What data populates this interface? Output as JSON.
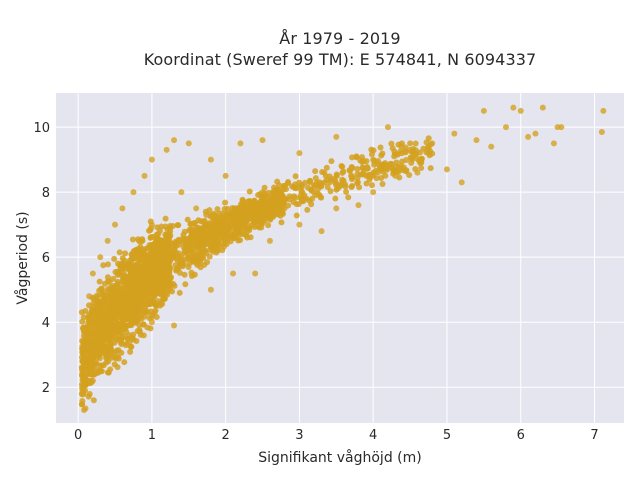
{
  "chart_data": {
    "type": "scatter",
    "title": "År 1979 - 2019",
    "subtitle": "Koordinat (Sweref 99 TM): E 574841, N 6094337",
    "xlabel": "Signifikant våghöjd (m)",
    "ylabel": "Vågperiod (s)",
    "xlim": [
      -0.3,
      7.4
    ],
    "ylim": [
      0.9,
      11.05
    ],
    "x_ticks": [
      0,
      1,
      2,
      3,
      4,
      5,
      6,
      7
    ],
    "y_ticks": [
      2,
      4,
      6,
      8,
      10
    ],
    "x_tick_labels": [
      "0",
      "1",
      "2",
      "3",
      "4",
      "5",
      "6",
      "7"
    ],
    "y_tick_labels": [
      "2",
      "4",
      "6",
      "8",
      "10"
    ],
    "grid": true,
    "legend": "none",
    "marker_color": "#D4A120",
    "background_color": "#E5E5F0",
    "series": [
      {
        "values": [
          {
            "x": 0.05,
            "y": 1.8
          },
          {
            "x": 0.08,
            "y": 1.3
          },
          {
            "x": 0.1,
            "y": 1.35
          },
          {
            "x": 0.1,
            "y": 2.5
          },
          {
            "x": 0.12,
            "y": 3.0
          },
          {
            "x": 0.15,
            "y": 3.5
          },
          {
            "x": 0.15,
            "y": 4.8
          },
          {
            "x": 0.2,
            "y": 2.2
          },
          {
            "x": 0.2,
            "y": 5.5
          },
          {
            "x": 0.25,
            "y": 3.8
          },
          {
            "x": 0.3,
            "y": 6.0
          },
          {
            "x": 0.3,
            "y": 2.5
          },
          {
            "x": 0.35,
            "y": 4.5
          },
          {
            "x": 0.4,
            "y": 6.5
          },
          {
            "x": 0.45,
            "y": 3.0
          },
          {
            "x": 0.5,
            "y": 7.0
          },
          {
            "x": 0.5,
            "y": 4.0
          },
          {
            "x": 0.6,
            "y": 7.5
          },
          {
            "x": 0.6,
            "y": 5.0
          },
          {
            "x": 0.7,
            "y": 3.4
          },
          {
            "x": 0.75,
            "y": 8.0
          },
          {
            "x": 0.8,
            "y": 6.0
          },
          {
            "x": 0.9,
            "y": 8.5
          },
          {
            "x": 1.0,
            "y": 4.0
          },
          {
            "x": 1.0,
            "y": 9.0
          },
          {
            "x": 1.0,
            "y": 7.0
          },
          {
            "x": 1.2,
            "y": 9.3
          },
          {
            "x": 1.2,
            "y": 5.0
          },
          {
            "x": 1.3,
            "y": 3.9
          },
          {
            "x": 1.3,
            "y": 9.6
          },
          {
            "x": 1.4,
            "y": 8.0
          },
          {
            "x": 1.5,
            "y": 6.0
          },
          {
            "x": 1.5,
            "y": 9.5
          },
          {
            "x": 1.6,
            "y": 7.5
          },
          {
            "x": 1.8,
            "y": 9.0
          },
          {
            "x": 1.8,
            "y": 5.0
          },
          {
            "x": 2.0,
            "y": 6.5
          },
          {
            "x": 2.0,
            "y": 8.5
          },
          {
            "x": 2.1,
            "y": 5.5
          },
          {
            "x": 2.2,
            "y": 9.5
          },
          {
            "x": 2.3,
            "y": 7.0
          },
          {
            "x": 2.4,
            "y": 5.5
          },
          {
            "x": 2.5,
            "y": 8.0
          },
          {
            "x": 2.5,
            "y": 9.6
          },
          {
            "x": 2.6,
            "y": 6.5
          },
          {
            "x": 2.8,
            "y": 7.5
          },
          {
            "x": 3.0,
            "y": 9.2
          },
          {
            "x": 3.0,
            "y": 7.0
          },
          {
            "x": 3.2,
            "y": 8.2
          },
          {
            "x": 3.3,
            "y": 6.8
          },
          {
            "x": 3.5,
            "y": 9.7
          },
          {
            "x": 3.5,
            "y": 7.5
          },
          {
            "x": 3.7,
            "y": 8.5
          },
          {
            "x": 3.8,
            "y": 7.6
          },
          {
            "x": 4.0,
            "y": 9.0
          },
          {
            "x": 4.0,
            "y": 8.0
          },
          {
            "x": 4.2,
            "y": 10.0
          },
          {
            "x": 4.3,
            "y": 8.5
          },
          {
            "x": 4.5,
            "y": 9.3
          },
          {
            "x": 4.6,
            "y": 8.6
          },
          {
            "x": 4.8,
            "y": 9.5
          },
          {
            "x": 5.0,
            "y": 8.7
          },
          {
            "x": 5.1,
            "y": 9.8
          },
          {
            "x": 5.2,
            "y": 8.3
          },
          {
            "x": 5.4,
            "y": 9.6
          },
          {
            "x": 5.5,
            "y": 10.5
          },
          {
            "x": 5.6,
            "y": 9.4
          },
          {
            "x": 5.8,
            "y": 10.0
          },
          {
            "x": 5.9,
            "y": 10.6
          },
          {
            "x": 6.0,
            "y": 10.5
          },
          {
            "x": 6.1,
            "y": 9.7
          },
          {
            "x": 6.2,
            "y": 9.8
          },
          {
            "x": 6.3,
            "y": 10.6
          },
          {
            "x": 6.45,
            "y": 9.5
          },
          {
            "x": 6.5,
            "y": 10.0
          },
          {
            "x": 6.55,
            "y": 10.0
          },
          {
            "x": 7.1,
            "y": 9.85
          },
          {
            "x": 7.12,
            "y": 10.5
          }
        ]
      }
    ]
  }
}
